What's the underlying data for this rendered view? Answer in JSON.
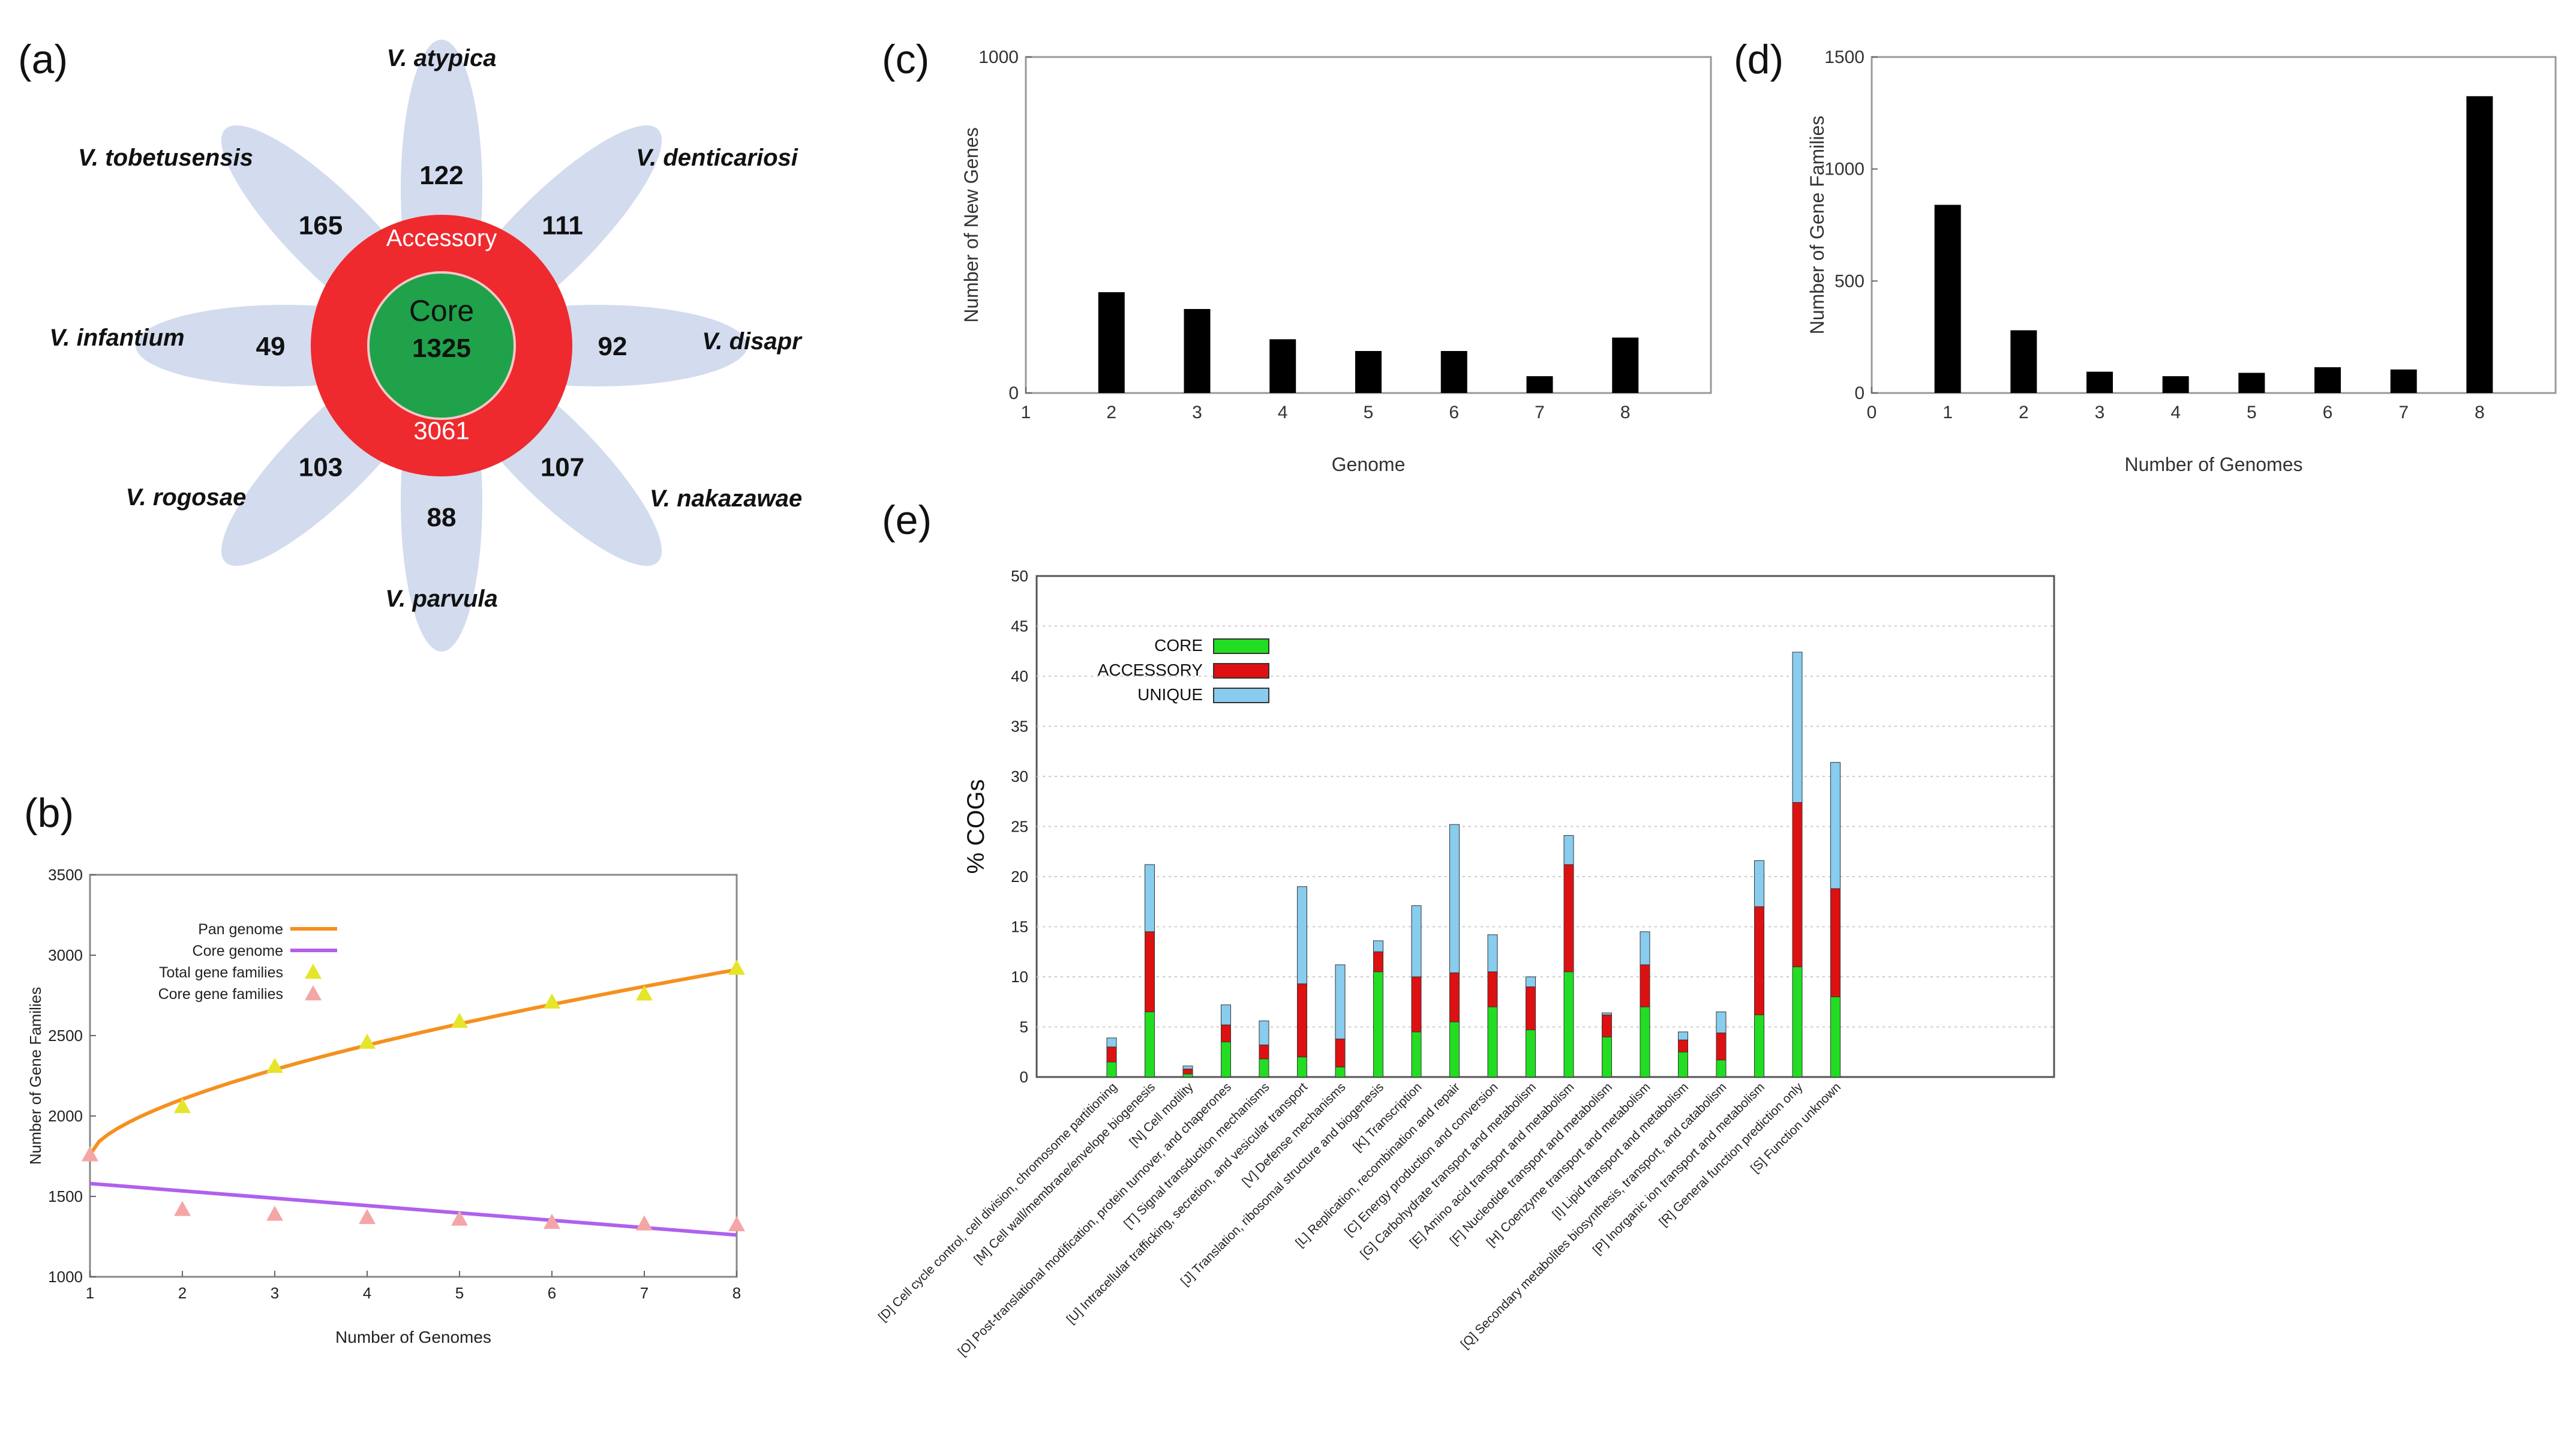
{
  "panel_labels": {
    "a": "(a)",
    "b": "(b)",
    "c": "(c)",
    "d": "(d)",
    "e": "(e)"
  },
  "flower": {
    "accessory_label": "Accessory",
    "accessory_count": "3061",
    "core_label": "Core",
    "core_count": "1325",
    "petals": [
      {
        "species": "V. atypica",
        "count": "122"
      },
      {
        "species": "V. denticariosi",
        "count": "111"
      },
      {
        "species": "V. disapr",
        "count": "92"
      },
      {
        "species": "V. nakazawae",
        "count": "107"
      },
      {
        "species": "V. parvula",
        "count": "88"
      },
      {
        "species": "V. rogosae",
        "count": "103"
      },
      {
        "species": "V. infantium",
        "count": "49"
      },
      {
        "species": "V. tobetusensis",
        "count": "165"
      }
    ],
    "colors": {
      "petal": "#d3dbee",
      "accessory": "#ee2a2f",
      "core": "#1fa24a"
    }
  },
  "chart_data": [
    {
      "id": "b",
      "type": "line",
      "xlabel": "Number of Genomes",
      "ylabel": "Number of Gene Families",
      "xlim": [
        1,
        8
      ],
      "ylim": [
        1000,
        3500
      ],
      "xticks": [
        "1",
        "2",
        "3",
        "4",
        "5",
        "6",
        "7",
        "8"
      ],
      "yticks": [
        "1000",
        "1500",
        "2000",
        "2500",
        "3000",
        "3500"
      ],
      "legend": [
        "Pan genome",
        "Core genome",
        "Total gene families",
        "Core gene families"
      ],
      "pan_genome_curve": {
        "x": [
          1,
          2,
          3,
          4,
          5,
          6,
          7,
          8
        ],
        "y": [
          1760,
          2060,
          2300,
          2470,
          2600,
          2710,
          2810,
          2910
        ]
      },
      "core_genome_line": {
        "x": [
          1,
          8
        ],
        "y": [
          1580,
          1260
        ]
      },
      "total_gene_families": {
        "x": [
          1,
          2,
          3,
          4,
          5,
          6,
          7,
          8
        ],
        "y": [
          1760,
          2060,
          2310,
          2460,
          2590,
          2710,
          2760,
          2920
        ]
      },
      "core_gene_families": {
        "x": [
          1,
          2,
          3,
          4,
          5,
          6,
          7,
          8
        ],
        "y": [
          1760,
          1420,
          1390,
          1370,
          1360,
          1340,
          1330,
          1325
        ]
      },
      "colors": {
        "pan": "#f5901e",
        "core": "#b060ee",
        "total": "#e5e52a",
        "coremarker": "#f4a6a6"
      }
    },
    {
      "id": "c",
      "type": "bar",
      "xlabel": "Genome",
      "ylabel": "Number of New Genes",
      "xlim": [
        1,
        9
      ],
      "ylim": [
        0,
        1000
      ],
      "xticks": [
        "1",
        "2",
        "3",
        "4",
        "5",
        "6",
        "7",
        "8"
      ],
      "yticks": [
        "0",
        "1000"
      ],
      "x": [
        2,
        3,
        4,
        5,
        6,
        7,
        8
      ],
      "values": [
        300,
        250,
        160,
        125,
        125,
        50,
        165
      ]
    },
    {
      "id": "d",
      "type": "bar",
      "xlabel": "Number of Genomes",
      "ylabel": "Number of Gene Families",
      "xlim": [
        0,
        9
      ],
      "ylim": [
        0,
        1500
      ],
      "xticks": [
        "0",
        "1",
        "2",
        "3",
        "4",
        "5",
        "6",
        "7",
        "8"
      ],
      "yticks": [
        "0",
        "500",
        "1000",
        "1500"
      ],
      "x": [
        1,
        2,
        3,
        4,
        5,
        6,
        7,
        8
      ],
      "values": [
        840,
        280,
        95,
        75,
        90,
        115,
        105,
        1325
      ]
    },
    {
      "id": "e",
      "type": "bar",
      "stacked": true,
      "ylabel": "% COGs",
      "ylim": [
        0,
        50
      ],
      "yticks": [
        "0",
        "5",
        "10",
        "15",
        "20",
        "25",
        "30",
        "35",
        "40",
        "45",
        "50"
      ],
      "legend": [
        "CORE",
        "ACCESSORY",
        "UNIQUE"
      ],
      "colors": {
        "core": "#22dd22",
        "accessory": "#dd1111",
        "unique": "#88ccee"
      },
      "categories": [
        "[D] Cell cycle control, cell division, chromosome partitioning",
        "[M] Cell wall/membrane/envelope biogenesis",
        "[N] Cell motility",
        "[O] Post-translational modification, protein turnover, and chaperones",
        "[T] Signal transduction mechanisms",
        "[U] Intracellular trafficking, secretion, and vesicular transport",
        "[V] Defense mechanisms",
        "[J] Translation, ribosomal structure and biogenesis",
        "[K] Transcription",
        "[L] Replication, recombination and repair",
        "[C] Energy production and conversion",
        "[G] Carbohydrate transport and metabolism",
        "[E] Amino acid transport and metabolism",
        "[F] Nucleotide transport and metabolism",
        "[H] Coenzyme transport and metabolism",
        "[I] Lipid transport and metabolism",
        "[Q] Secondary metabolites biosynthesis, transport, and catabolism",
        "[P] Inorganic ion transport and metabolism",
        "[R] General function prediction only",
        "[S] Function unknown"
      ],
      "series": [
        {
          "name": "CORE",
          "values": [
            1.5,
            6.5,
            0.3,
            3.5,
            1.8,
            2.0,
            1.0,
            10.5,
            4.5,
            5.5,
            7.0,
            4.7,
            10.5,
            4.0,
            7.0,
            2.5,
            1.7,
            6.2,
            11.0,
            8.0
          ]
        },
        {
          "name": "ACCESSORY",
          "values": [
            1.5,
            8.0,
            0.5,
            1.7,
            1.4,
            7.3,
            2.8,
            2.0,
            5.5,
            4.9,
            3.5,
            4.3,
            10.7,
            2.2,
            4.2,
            1.2,
            2.7,
            10.8,
            16.4,
            10.8
          ]
        },
        {
          "name": "UNIQUE",
          "values": [
            0.9,
            6.7,
            0.3,
            2.0,
            2.4,
            9.7,
            7.4,
            1.1,
            7.1,
            14.8,
            3.7,
            1.0,
            2.9,
            0.2,
            3.3,
            0.8,
            2.1,
            4.6,
            15.0,
            12.6
          ]
        }
      ]
    }
  ]
}
